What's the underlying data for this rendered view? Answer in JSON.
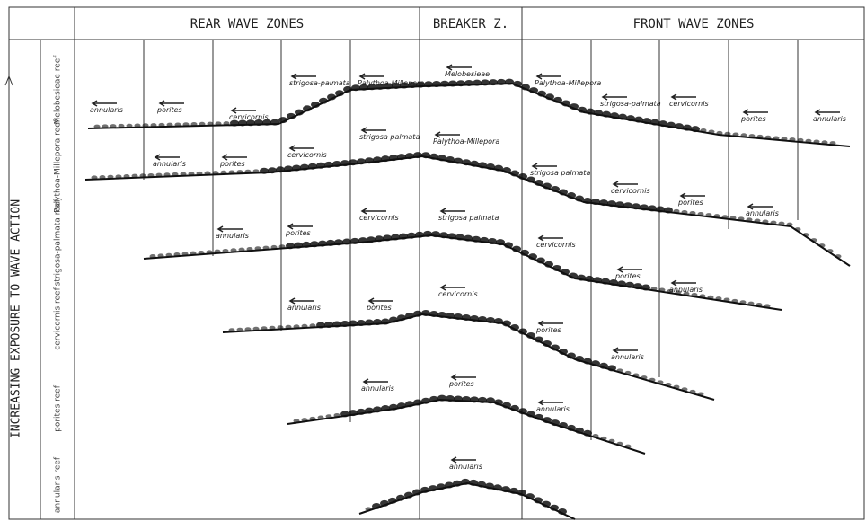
{
  "header": {
    "rear": "REAR WAVE ZONES",
    "breaker": "BREAKER Z.",
    "front": "FRONT WAVE ZONES"
  },
  "axis_label": "INCREASING EXPOSURE TO WAVE ACTION",
  "rows": [
    {
      "name": "Melobesieae reef",
      "labels": [
        "annularis",
        "porites",
        "cervicornis",
        "strigosa-palmata",
        "Palythoa-Millepora",
        "Melobesieae",
        "Palythoa-Millepora",
        "strigosa-palmata",
        "cervicornis",
        "porites",
        "annularis"
      ]
    },
    {
      "name": "Palythoa-Millepora reef",
      "labels": [
        "annularis",
        "porites",
        "cervicornis",
        "strigosa palmata",
        "Palythoa-Millepora",
        "strigosa palmata",
        "cervicornis",
        "porites",
        "annularis"
      ]
    },
    {
      "name": "strigosa-palmata reef",
      "labels": [
        "annularis",
        "porites",
        "cervicornis",
        "strigosa palmata",
        "cervicornis",
        "porites",
        "annularis"
      ]
    },
    {
      "name": "cervicornis reef",
      "labels": [
        "annularis",
        "porites",
        "cervicornis",
        "porites",
        "annularis"
      ]
    },
    {
      "name": "porites reef",
      "labels": [
        "annularis",
        "porites",
        "annularis"
      ]
    },
    {
      "name": "annularis reef",
      "labels": [
        "annularis"
      ]
    }
  ]
}
